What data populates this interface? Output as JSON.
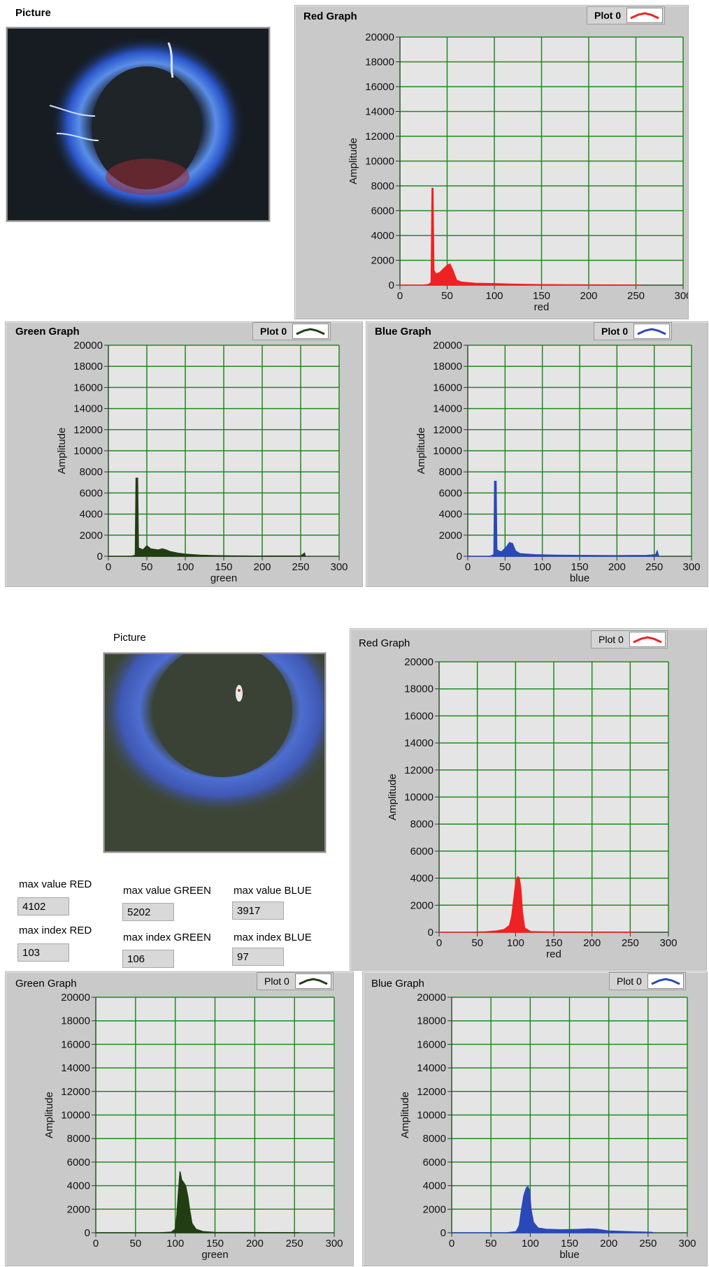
{
  "top": {
    "picture_label": "Picture",
    "red": {
      "title": "Red Graph",
      "legend": "Plot 0",
      "color": "#ee2222",
      "chart_data": {
        "type": "area",
        "title": "Red Graph",
        "xlabel": "red",
        "ylabel": "Amplitude",
        "xlim": [
          0,
          300
        ],
        "ylim": [
          0,
          20000
        ],
        "grid": true,
        "points": [
          [
            0,
            0
          ],
          [
            25,
            0
          ],
          [
            30,
            50
          ],
          [
            33,
            200
          ],
          [
            34,
            7800
          ],
          [
            35,
            7800
          ],
          [
            36,
            1200
          ],
          [
            38,
            900
          ],
          [
            42,
            1000
          ],
          [
            46,
            1300
          ],
          [
            50,
            1600
          ],
          [
            53,
            1700
          ],
          [
            56,
            1200
          ],
          [
            60,
            400
          ],
          [
            65,
            250
          ],
          [
            80,
            150
          ],
          [
            100,
            120
          ],
          [
            120,
            80
          ],
          [
            150,
            40
          ],
          [
            200,
            20
          ],
          [
            255,
            10
          ],
          [
            256,
            0
          ]
        ]
      }
    },
    "green": {
      "title": "Green Graph",
      "legend": "Plot 0",
      "color": "#223d12",
      "chart_data": {
        "type": "area",
        "title": "Green Graph",
        "xlabel": "green",
        "ylabel": "Amplitude",
        "xlim": [
          0,
          300
        ],
        "ylim": [
          0,
          20000
        ],
        "grid": true,
        "points": [
          [
            0,
            0
          ],
          [
            30,
            0
          ],
          [
            35,
            100
          ],
          [
            36,
            7400
          ],
          [
            38,
            7400
          ],
          [
            39,
            800
          ],
          [
            45,
            600
          ],
          [
            50,
            1000
          ],
          [
            55,
            700
          ],
          [
            60,
            650
          ],
          [
            65,
            600
          ],
          [
            70,
            700
          ],
          [
            75,
            600
          ],
          [
            80,
            450
          ],
          [
            90,
            300
          ],
          [
            100,
            200
          ],
          [
            120,
            100
          ],
          [
            140,
            60
          ],
          [
            160,
            30
          ],
          [
            200,
            20
          ],
          [
            250,
            30
          ],
          [
            255,
            300
          ],
          [
            256,
            0
          ]
        ]
      }
    },
    "blue": {
      "title": "Blue Graph",
      "legend": "Plot 0",
      "color": "#2a48b8",
      "chart_data": {
        "type": "area",
        "title": "Blue Graph",
        "xlabel": "blue",
        "ylabel": "Amplitude",
        "xlim": [
          0,
          300
        ],
        "ylim": [
          0,
          20000
        ],
        "grid": true,
        "points": [
          [
            0,
            0
          ],
          [
            30,
            0
          ],
          [
            35,
            150
          ],
          [
            36,
            7100
          ],
          [
            38,
            7100
          ],
          [
            39,
            600
          ],
          [
            45,
            400
          ],
          [
            52,
            900
          ],
          [
            56,
            1300
          ],
          [
            60,
            1200
          ],
          [
            64,
            500
          ],
          [
            70,
            250
          ],
          [
            90,
            150
          ],
          [
            120,
            100
          ],
          [
            150,
            80
          ],
          [
            200,
            60
          ],
          [
            240,
            80
          ],
          [
            252,
            150
          ],
          [
            254,
            500
          ],
          [
            256,
            0
          ]
        ]
      }
    }
  },
  "bottom": {
    "picture_label": "Picture",
    "stats": {
      "max_value_red_label": "max value RED",
      "max_value_red": "4102",
      "max_index_red_label": "max index RED",
      "max_index_red": "103",
      "max_value_green_label": "max value GREEN",
      "max_value_green": "5202",
      "max_index_green_label": "max index GREEN",
      "max_index_green": "106",
      "max_value_blue_label": "max value BLUE",
      "max_value_blue": "3917",
      "max_index_blue_label": "max index BLUE",
      "max_index_blue": "97"
    },
    "red": {
      "title": "Red Graph",
      "legend": "Plot 0",
      "color": "#ee2222",
      "chart_data": {
        "type": "area",
        "title": "Red Graph",
        "xlabel": "red",
        "ylabel": "Amplitude",
        "xlim": [
          0,
          300
        ],
        "ylim": [
          0,
          20000
        ],
        "grid": true,
        "points": [
          [
            0,
            0
          ],
          [
            40,
            0
          ],
          [
            60,
            30
          ],
          [
            75,
            100
          ],
          [
            85,
            200
          ],
          [
            92,
            500
          ],
          [
            95,
            1200
          ],
          [
            98,
            2600
          ],
          [
            100,
            3600
          ],
          [
            102,
            4000
          ],
          [
            103,
            4102
          ],
          [
            105,
            4000
          ],
          [
            107,
            3200
          ],
          [
            109,
            1500
          ],
          [
            112,
            300
          ],
          [
            120,
            50
          ],
          [
            150,
            20
          ],
          [
            255,
            10
          ],
          [
            256,
            0
          ]
        ]
      }
    },
    "green": {
      "title": "Green Graph",
      "legend": "Plot 0",
      "color": "#223d12",
      "chart_data": {
        "type": "area",
        "title": "Green Graph",
        "xlabel": "green",
        "ylabel": "Amplitude",
        "xlim": [
          0,
          300
        ],
        "ylim": [
          0,
          20000
        ],
        "grid": true,
        "points": [
          [
            0,
            0
          ],
          [
            80,
            0
          ],
          [
            95,
            50
          ],
          [
            100,
            300
          ],
          [
            102,
            1500
          ],
          [
            104,
            3500
          ],
          [
            106,
            5202
          ],
          [
            108,
            4500
          ],
          [
            110,
            4300
          ],
          [
            113,
            4000
          ],
          [
            116,
            3000
          ],
          [
            118,
            2000
          ],
          [
            121,
            800
          ],
          [
            126,
            300
          ],
          [
            135,
            100
          ],
          [
            150,
            30
          ],
          [
            255,
            10
          ],
          [
            256,
            0
          ]
        ]
      }
    },
    "blue": {
      "title": "Blue Graph",
      "legend": "Plot 0",
      "color": "#2a48b8",
      "chart_data": {
        "type": "area",
        "title": "Blue Graph",
        "xlabel": "blue",
        "ylabel": "Amplitude",
        "xlim": [
          0,
          300
        ],
        "ylim": [
          0,
          20000
        ],
        "grid": true,
        "points": [
          [
            0,
            0
          ],
          [
            70,
            0
          ],
          [
            82,
            100
          ],
          [
            86,
            600
          ],
          [
            89,
            2000
          ],
          [
            92,
            3200
          ],
          [
            95,
            3800
          ],
          [
            97,
            3917
          ],
          [
            99,
            3600
          ],
          [
            101,
            2000
          ],
          [
            104,
            900
          ],
          [
            110,
            400
          ],
          [
            120,
            300
          ],
          [
            140,
            250
          ],
          [
            160,
            280
          ],
          [
            175,
            330
          ],
          [
            185,
            300
          ],
          [
            200,
            150
          ],
          [
            230,
            80
          ],
          [
            255,
            40
          ],
          [
            256,
            0
          ]
        ]
      }
    }
  }
}
